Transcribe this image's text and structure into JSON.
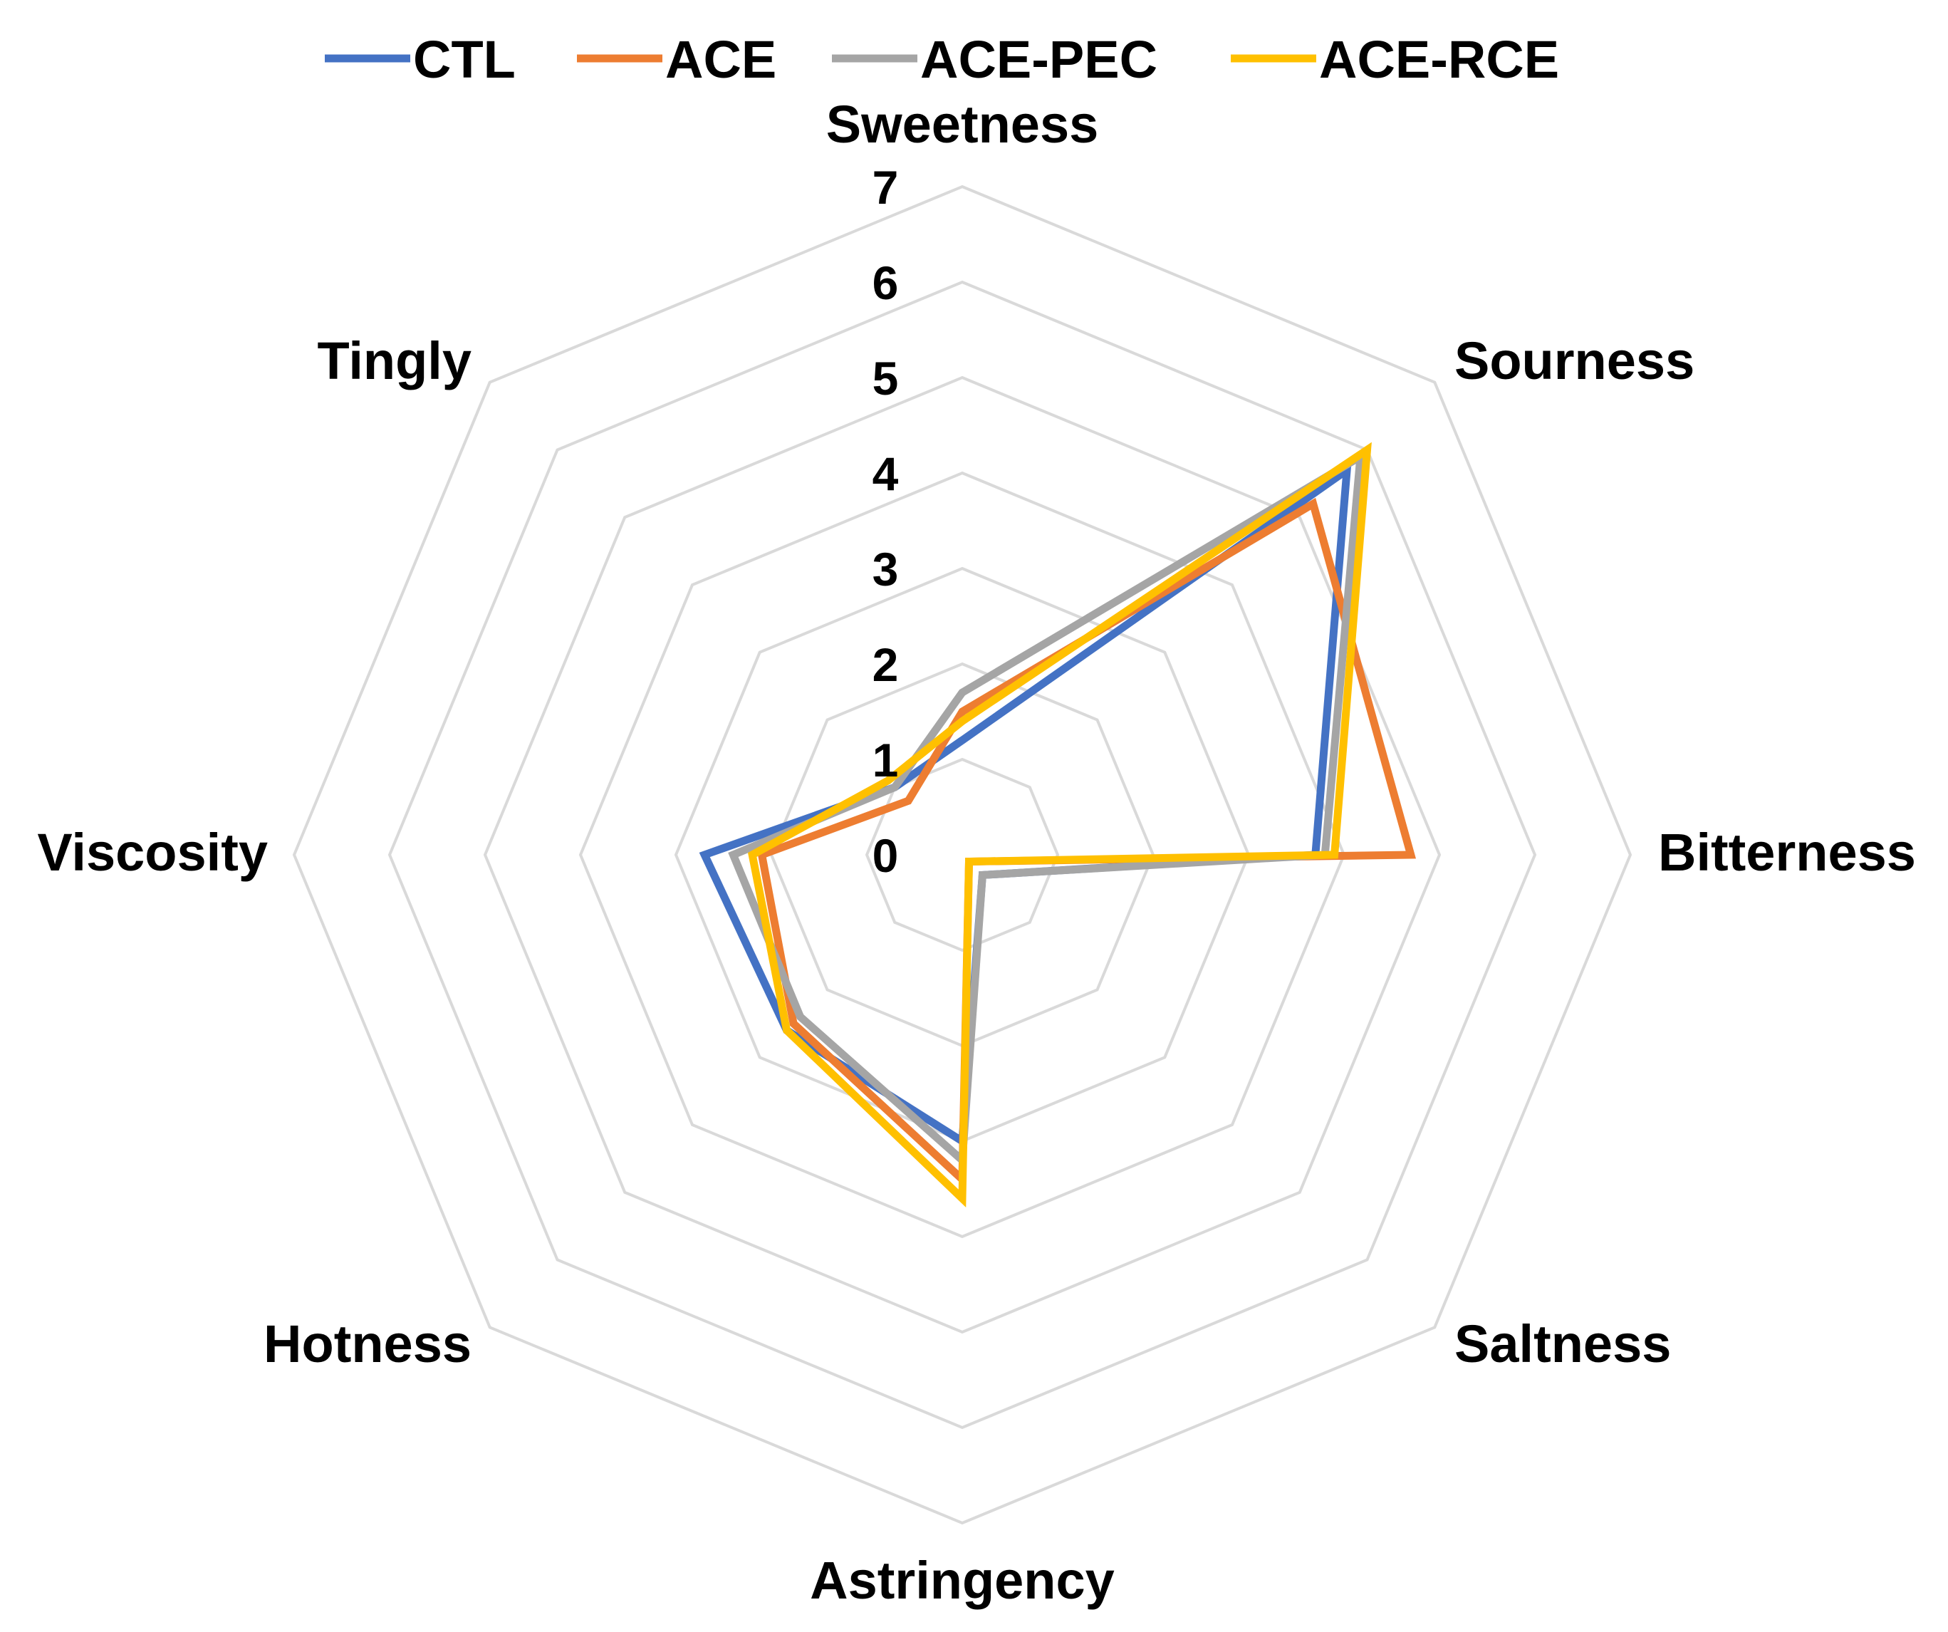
{
  "chart_data": {
    "type": "radar",
    "axes": [
      "Sweetness",
      "Sourness",
      "Bitterness",
      "Saltness",
      "Astringency",
      "Hotness",
      "Viscosity",
      "Tingly"
    ],
    "rlim": [
      0,
      7
    ],
    "ticks": [
      "0",
      "1",
      "2",
      "3",
      "4",
      "5",
      "6",
      "7"
    ],
    "grid": true,
    "legend_position": "top",
    "series": [
      {
        "name": "CTL",
        "color": "#4472C4",
        "values": [
          1.2,
          5.7,
          3.7,
          0.3,
          3.0,
          2.6,
          2.7,
          1.0
        ]
      },
      {
        "name": "ACE",
        "color": "#ED7D31",
        "values": [
          1.5,
          5.2,
          4.7,
          0.1,
          3.4,
          2.5,
          2.1,
          0.8
        ]
      },
      {
        "name": "ACE-PEC",
        "color": "#A5A5A5",
        "values": [
          1.7,
          5.9,
          3.8,
          0.3,
          3.2,
          2.4,
          2.4,
          1.0
        ]
      },
      {
        "name": "ACE-RCE",
        "color": "#FFC000",
        "values": [
          1.4,
          6.0,
          3.9,
          0.1,
          3.6,
          2.6,
          2.2,
          1.1
        ]
      }
    ]
  }
}
